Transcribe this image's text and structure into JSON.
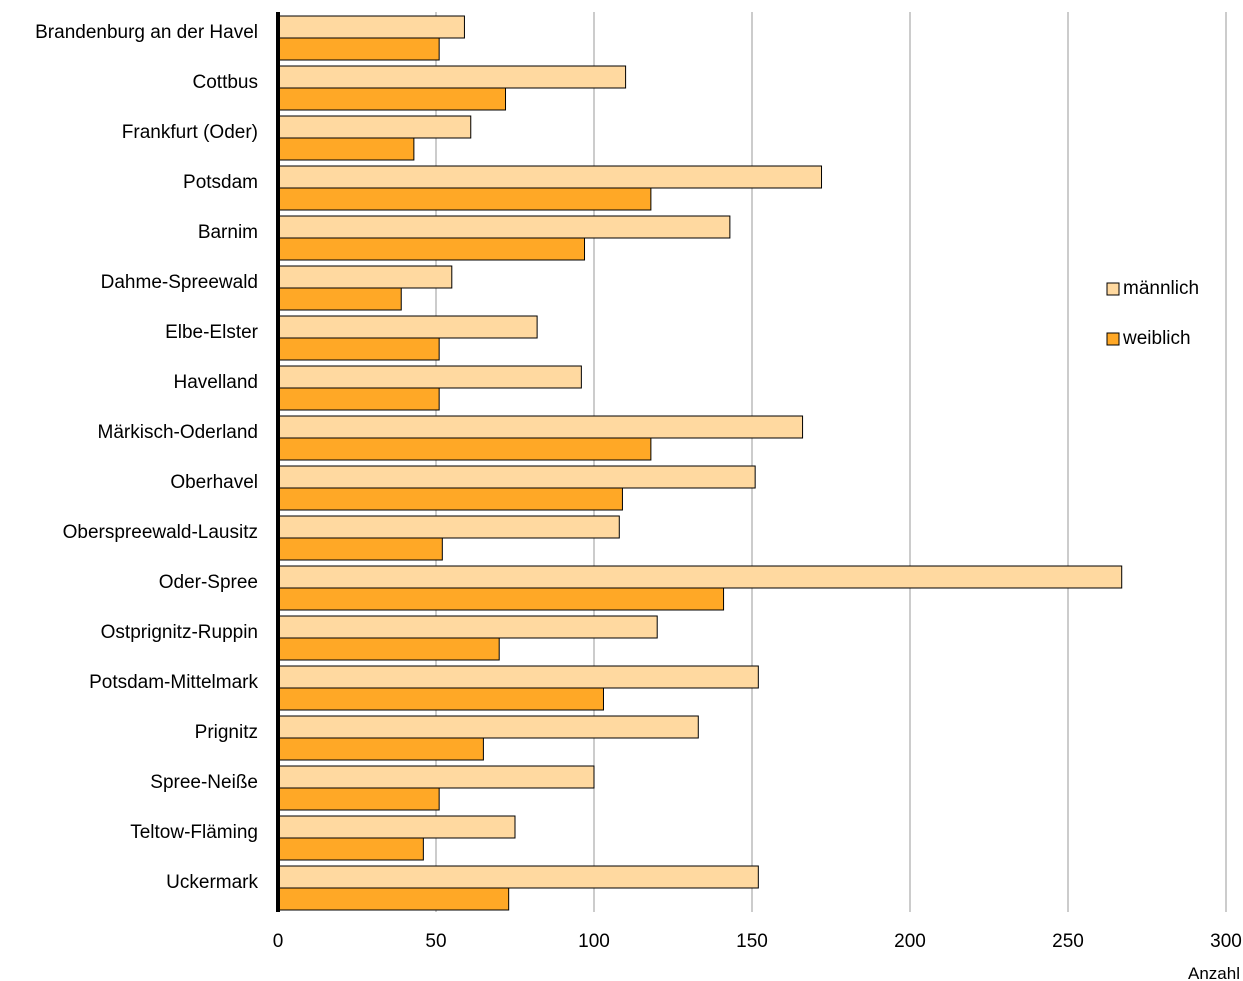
{
  "chart_data": {
    "type": "bar",
    "orientation": "horizontal",
    "categories": [
      "Brandenburg an der Havel",
      "Cottbus",
      "Frankfurt (Oder)",
      "Potsdam",
      "Barnim",
      "Dahme-Spreewald",
      "Elbe-Elster",
      "Havelland",
      "Märkisch-Oderland",
      "Oberhavel",
      "Oberspreewald-Lausitz",
      "Oder-Spree",
      "Ostprignitz-Ruppin",
      "Potsdam-Mittelmark",
      "Prignitz",
      "Spree-Neiße",
      "Teltow-Fläming",
      "Uckermark"
    ],
    "series": [
      {
        "name": "männlich",
        "color": "#FFD9A0",
        "values": [
          59,
          110,
          61,
          172,
          143,
          55,
          82,
          96,
          166,
          151,
          108,
          267,
          120,
          152,
          133,
          100,
          75,
          152
        ]
      },
      {
        "name": "weiblich",
        "color": "#FFA826",
        "values": [
          51,
          72,
          43,
          118,
          97,
          39,
          51,
          51,
          118,
          109,
          52,
          141,
          70,
          103,
          65,
          51,
          46,
          73
        ]
      }
    ],
    "xlim": [
      0,
      300
    ],
    "xticks": [
      0,
      50,
      100,
      150,
      200,
      250,
      300
    ],
    "xlabel": "Anzahl",
    "grid": "vertical",
    "legend": "right"
  }
}
